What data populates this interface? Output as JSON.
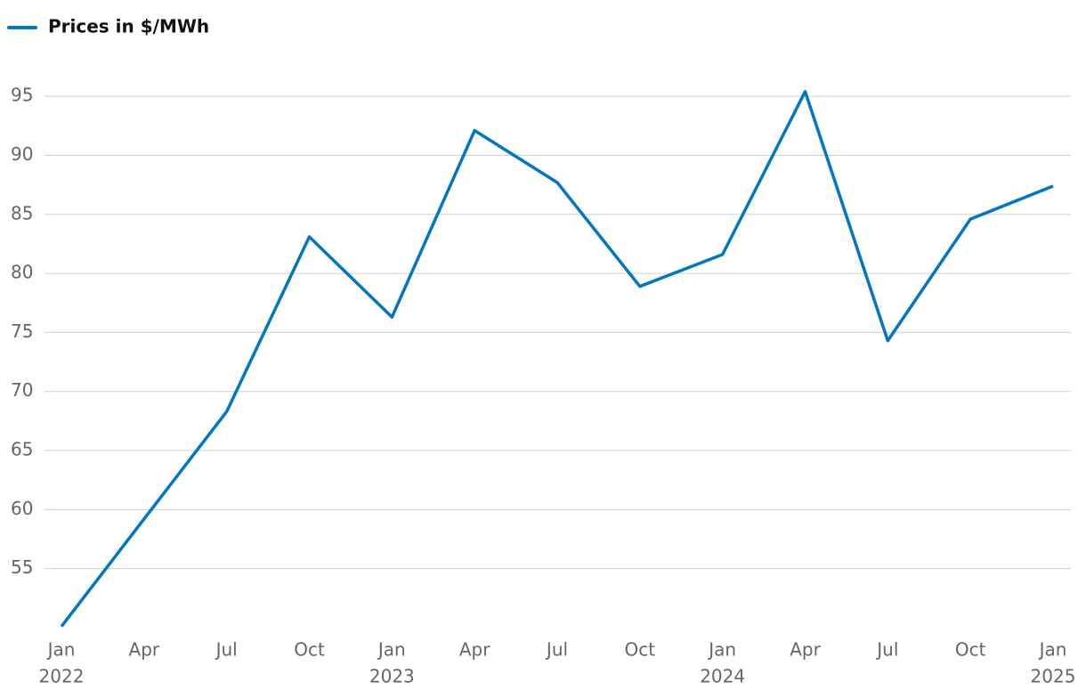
{
  "chart_data": {
    "type": "line",
    "categories": [
      "Jan",
      "Apr",
      "Jul",
      "Oct",
      "Jan",
      "Apr",
      "Jul",
      "Oct",
      "Jan",
      "Apr",
      "Jul",
      "Oct",
      "Jan"
    ],
    "category_years": [
      "2022",
      null,
      null,
      null,
      "2023",
      null,
      null,
      null,
      "2024",
      null,
      null,
      null,
      "2025"
    ],
    "series": [
      {
        "name": "Prices in $/MWh",
        "color": "#0077c0",
        "values": [
          50.1,
          59.2,
          68.3,
          83.1,
          76.3,
          92.1,
          87.7,
          78.9,
          81.6,
          95.4,
          74.3,
          84.6,
          87.4
        ]
      }
    ],
    "ylim": [
      50,
      97.5
    ],
    "yticks": [
      55,
      60,
      65,
      70,
      75,
      80,
      85,
      90,
      95
    ],
    "grid": true,
    "legend": "top-left"
  }
}
